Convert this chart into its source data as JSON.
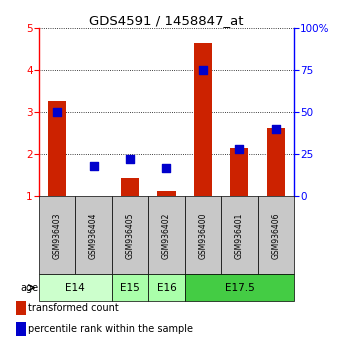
{
  "title": "GDS4591 / 1458847_at",
  "samples": [
    "GSM936403",
    "GSM936404",
    "GSM936405",
    "GSM936402",
    "GSM936400",
    "GSM936401",
    "GSM936406"
  ],
  "transformed_count": [
    3.28,
    1.02,
    1.45,
    1.12,
    4.65,
    2.15,
    2.62
  ],
  "percentile_rank": [
    50,
    18,
    22,
    17,
    75,
    28,
    40
  ],
  "ylim_left": [
    1,
    5
  ],
  "ylim_right": [
    0,
    100
  ],
  "yticks_left": [
    1,
    2,
    3,
    4,
    5
  ],
  "yticks_right": [
    0,
    25,
    50,
    75,
    100
  ],
  "age_groups": [
    {
      "label": "E14",
      "samples": [
        0,
        1
      ],
      "color": "#ccffcc"
    },
    {
      "label": "E15",
      "samples": [
        2
      ],
      "color": "#aaffaa"
    },
    {
      "label": "E16",
      "samples": [
        3
      ],
      "color": "#aaffaa"
    },
    {
      "label": "E17.5",
      "samples": [
        4,
        5,
        6
      ],
      "color": "#44cc44"
    }
  ],
  "bar_color": "#cc2200",
  "dot_color": "#0000cc",
  "bar_width": 0.5,
  "dot_size": 40,
  "sample_bg": "#c8c8c8",
  "age_label": "age",
  "legend_items": [
    {
      "label": "transformed count",
      "color": "#cc2200"
    },
    {
      "label": "percentile rank within the sample",
      "color": "#0000cc"
    }
  ]
}
